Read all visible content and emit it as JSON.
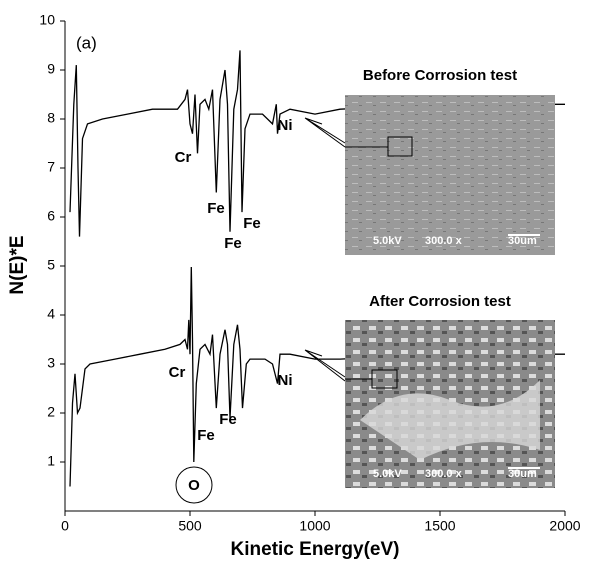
{
  "chart_data": {
    "type": "line",
    "x_label": "Kinetic Energy(eV)",
    "y_label": "N(E)*E",
    "xlim": [
      0,
      2000
    ],
    "xticks": [
      0,
      500,
      1000,
      1500,
      2000
    ],
    "ylim": [
      0,
      10
    ],
    "yticks": [
      1,
      2,
      3,
      4,
      5,
      6,
      7,
      8,
      9,
      10
    ],
    "series": [
      {
        "name": "Before Corrosion test",
        "color": "#000000",
        "x": [
          20,
          35,
          45,
          52,
          58,
          70,
          90,
          150,
          250,
          350,
          450,
          480,
          490,
          500,
          510,
          520,
          530,
          540,
          560,
          575,
          590,
          605,
          620,
          640,
          650,
          660,
          675,
          690,
          700,
          708,
          720,
          740,
          790,
          810,
          830,
          845,
          850,
          860,
          900,
          1000,
          1100,
          1500,
          2000
        ],
        "values": [
          6.1,
          8.3,
          9.1,
          7.0,
          5.6,
          7.6,
          7.9,
          8.0,
          8.1,
          8.2,
          8.2,
          8.4,
          8.6,
          7.9,
          7.7,
          8.5,
          7.3,
          8.3,
          8.4,
          8.2,
          8.6,
          6.5,
          8.4,
          9.0,
          8.3,
          5.7,
          8.2,
          8.6,
          9.4,
          6.1,
          7.8,
          8.1,
          8.1,
          8.0,
          7.9,
          8.3,
          7.7,
          8.1,
          8.2,
          8.1,
          8.2,
          8.3,
          8.3
        ]
      },
      {
        "name": "After Corrosion test",
        "color": "#000000",
        "x": [
          20,
          30,
          40,
          50,
          60,
          80,
          100,
          200,
          300,
          400,
          460,
          480,
          490,
          495,
          500,
          505,
          510,
          515,
          525,
          540,
          560,
          580,
          590,
          605,
          620,
          640,
          650,
          660,
          675,
          690,
          700,
          710,
          725,
          740,
          800,
          830,
          850,
          860,
          900,
          1000,
          1100,
          1500,
          2000
        ],
        "values": [
          0.5,
          2.2,
          2.8,
          2.0,
          2.1,
          2.9,
          3.0,
          3.1,
          3.2,
          3.3,
          3.4,
          3.5,
          3.3,
          3.9,
          3.2,
          4.98,
          3.5,
          1.0,
          2.6,
          3.3,
          3.4,
          3.2,
          3.6,
          2.1,
          3.2,
          3.7,
          3.4,
          1.9,
          3.4,
          3.8,
          3.3,
          2.1,
          3.0,
          3.1,
          3.1,
          3.0,
          2.6,
          3.2,
          3.2,
          3.1,
          3.1,
          3.2,
          3.2
        ]
      }
    ],
    "annotations": [
      "(a)",
      "Cr",
      "Fe",
      "Fe",
      "Fe",
      "Ni",
      "Cr",
      "Fe",
      "Fe",
      "O",
      "Ni"
    ],
    "insets": [
      {
        "voltage": "5.0kV",
        "magnification": "300.0 x",
        "scale": "30um"
      },
      {
        "voltage": "5.0kV",
        "magnification": "300.0 x",
        "scale": "30um"
      }
    ]
  }
}
